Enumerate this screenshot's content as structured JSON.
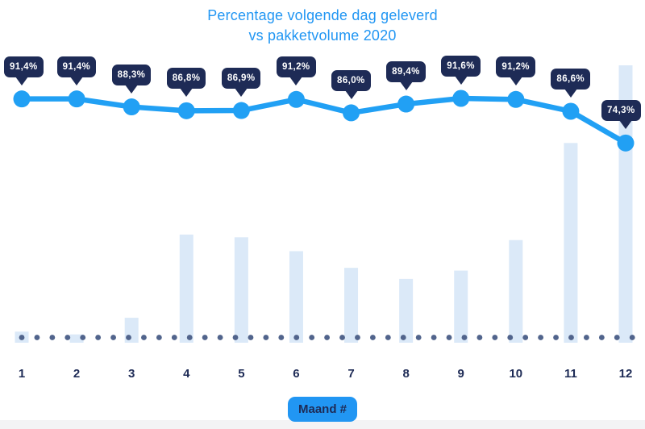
{
  "title": {
    "line1": "Percentage volgende dag geleverd",
    "line2": "vs pakketvolume 2020"
  },
  "xaxis": {
    "badge_label": "Maand #",
    "categories": [
      "1",
      "2",
      "3",
      "4",
      "5",
      "6",
      "7",
      "8",
      "9",
      "10",
      "11",
      "12"
    ]
  },
  "chart_data": {
    "type": "combo",
    "title": "Percentage volgende dag geleverd vs pakketvolume 2020",
    "xlabel": "Maand #",
    "categories": [
      1,
      2,
      3,
      4,
      5,
      6,
      7,
      8,
      9,
      10,
      11,
      12
    ],
    "series": [
      {
        "name": "Percentage volgende dag geleverd",
        "type": "line",
        "unit": "%",
        "values": [
          91.4,
          91.4,
          88.3,
          86.8,
          86.9,
          91.2,
          86.0,
          89.4,
          91.6,
          91.2,
          86.6,
          74.3
        ],
        "point_labels": [
          "91,4%",
          "91,4%",
          "88,3%",
          "86,8%",
          "86,9%",
          "91,2%",
          "86,0%",
          "89,4%",
          "91,6%",
          "91,2%",
          "86,6%",
          "74,3%"
        ]
      },
      {
        "name": "Pakketvolume 2020",
        "type": "bar",
        "unit": "relative_percent_of_max_estimated",
        "values": [
          4,
          3,
          9,
          39,
          38,
          33,
          27,
          23,
          26,
          37,
          72,
          100
        ],
        "note": "bar axis unlabeled in source; heights estimated from pixels as % of tallest bar (month 12)"
      }
    ],
    "legend": "none",
    "grid": "off",
    "baseline_style": "dotted"
  },
  "colors": {
    "accent_blue": "#2196f3",
    "line_blue": "#21a0f4",
    "navy": "#1e2b56",
    "bar_fill": "#dbe9f8",
    "dot": "#51648c",
    "strip": "#f3f3f5",
    "tooltip_text": "#ffffff"
  }
}
